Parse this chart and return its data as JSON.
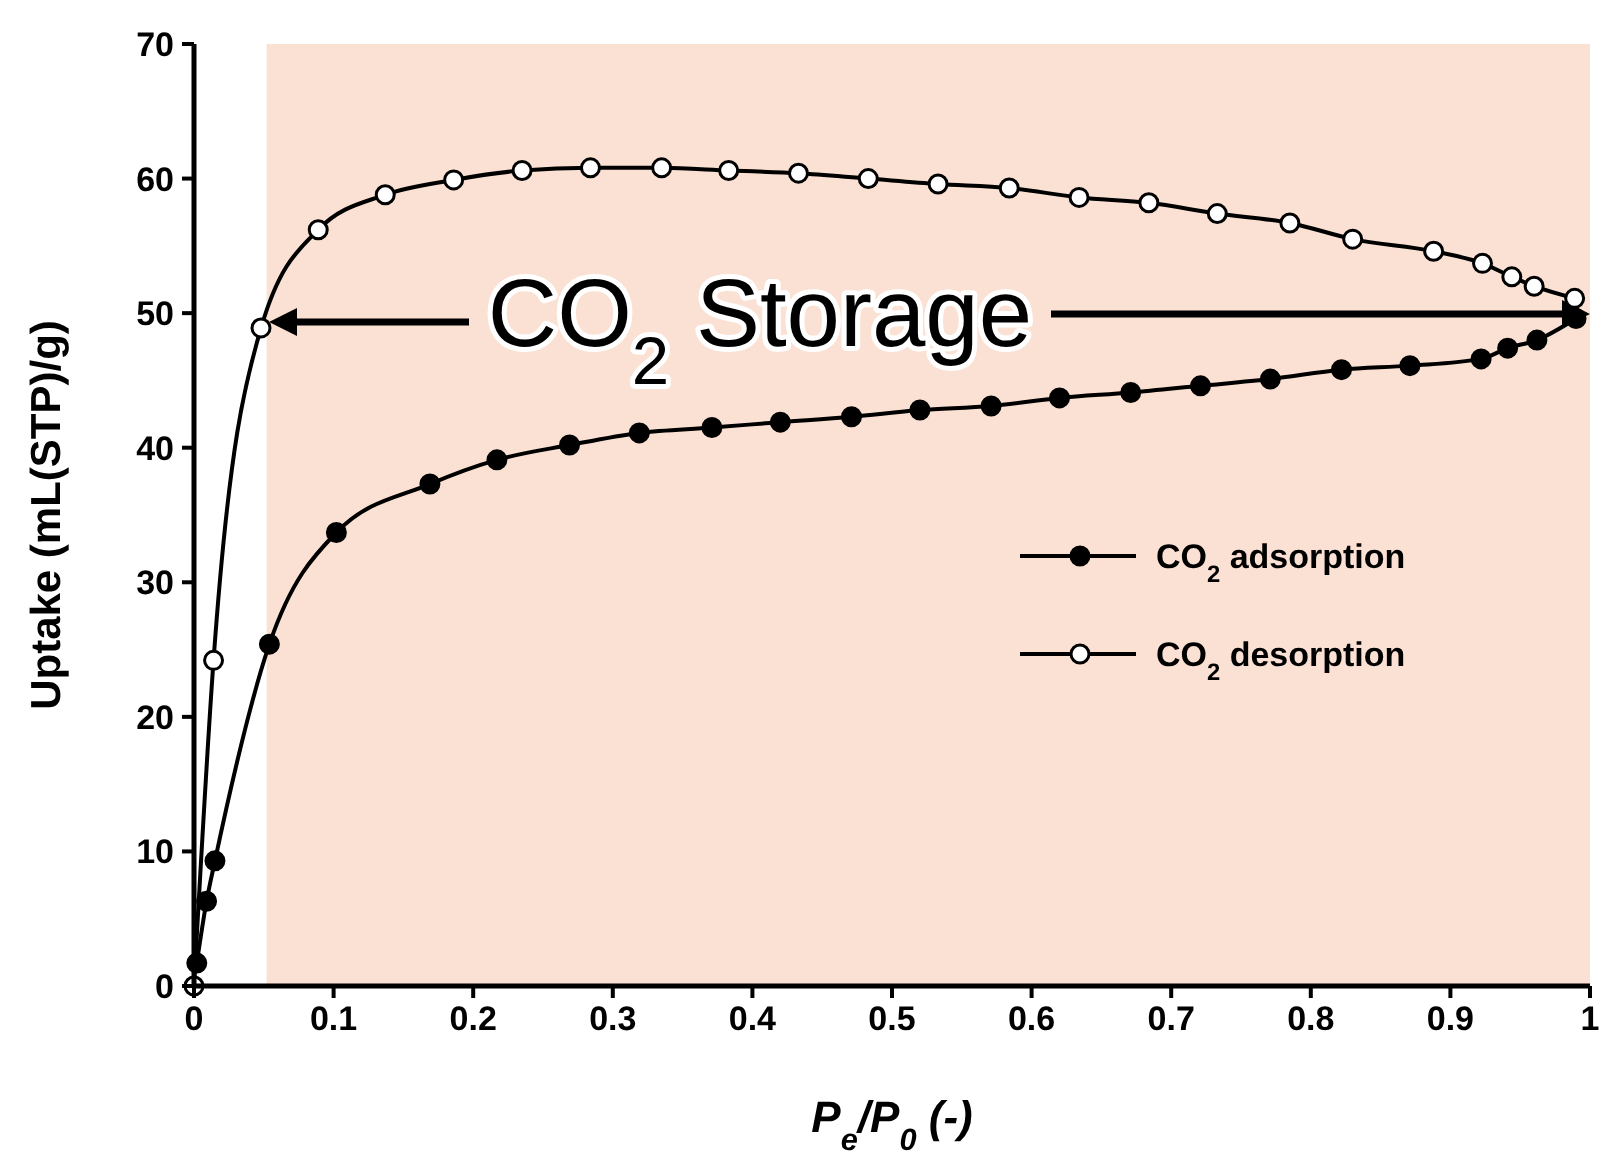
{
  "chart_data": {
    "type": "line",
    "xlabel": "P$_{e}$/P$_{0}$ (-)",
    "ylabel": "Uptake (mL(STP)/g)",
    "xlim": [
      0,
      1
    ],
    "xticks": [
      0,
      0.1,
      0.2,
      0.3,
      0.4,
      0.5,
      0.6,
      0.7,
      0.8,
      0.9,
      1
    ],
    "ylim": [
      0,
      70
    ],
    "yticks": [
      0,
      10,
      20,
      30,
      40,
      50,
      60,
      70
    ],
    "grid": false,
    "legend": "right",
    "marker": "circle",
    "line_style": "solid",
    "bands": [
      {
        "axis": "x",
        "from": 0.052,
        "to": 1,
        "color": "#fbe1d3"
      }
    ],
    "annotations": [
      {
        "text": "CO$_{2}$ Storage",
        "x": 0.048,
        "y": 48.9
      }
    ],
    "series": [
      {
        "name": "CO$_{2}$ adsorption",
        "color": "#000000",
        "x": [
          0.002,
          0.009,
          0.015,
          0.054,
          0.102,
          0.169,
          0.217,
          0.269,
          0.319,
          0.371,
          0.42,
          0.471,
          0.52,
          0.571,
          0.62,
          0.671,
          0.721,
          0.771,
          0.822,
          0.871,
          0.922,
          0.941,
          0.962,
          0.99
        ],
        "values": [
          1.7,
          6.3,
          9.3,
          25.4,
          33.7,
          37.3,
          39.1,
          40.2,
          41.1,
          41.5,
          41.9,
          42.3,
          42.8,
          43.1,
          43.7,
          44.1,
          44.6,
          45.1,
          45.8,
          46.1,
          46.6,
          47.4,
          48.0,
          49.6
        ]
      },
      {
        "name": "CO$_{2}$ desorption",
        "color": "#ffffff",
        "x": [
          0,
          0.014,
          0.048,
          0.089,
          0.137,
          0.186,
          0.235,
          0.284,
          0.335,
          0.383,
          0.433,
          0.483,
          0.533,
          0.584,
          0.634,
          0.684,
          0.733,
          0.785,
          0.83,
          0.888,
          0.923,
          0.944,
          0.96,
          0.989
        ],
        "values": [
          0,
          24.2,
          48.9,
          56.2,
          58.8,
          59.9,
          60.6,
          60.8,
          60.8,
          60.6,
          60.4,
          60.0,
          59.6,
          59.3,
          58.6,
          58.2,
          57.4,
          56.7,
          55.5,
          54.6,
          53.7,
          52.7,
          52.0,
          51.1
        ]
      }
    ]
  }
}
